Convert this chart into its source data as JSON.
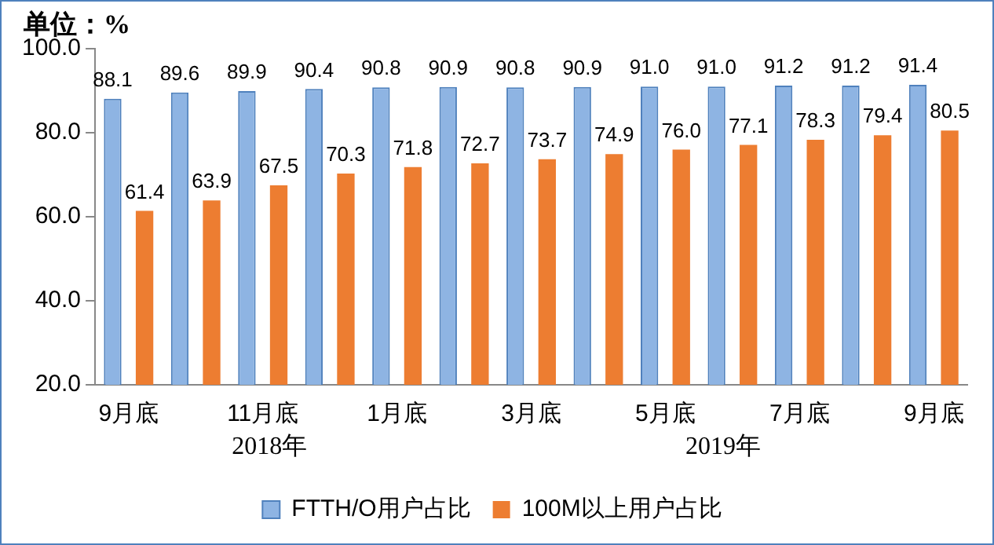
{
  "chart_data": {
    "type": "bar",
    "title": "单位：%",
    "categories": [
      "9月底",
      null,
      "11月底",
      null,
      "1月底",
      null,
      "3月底",
      null,
      "5月底",
      null,
      "7月底",
      null,
      "9月底"
    ],
    "series": [
      {
        "name": "FTTH/O用户占比",
        "color": "#8eb4e3",
        "values": [
          88.1,
          89.6,
          89.9,
          90.4,
          90.8,
          90.9,
          90.8,
          90.9,
          91.0,
          91.0,
          91.2,
          91.2,
          91.4
        ],
        "value_labels": [
          "88.1",
          "89.6",
          "89.9",
          "90.4",
          "90.8",
          "90.9",
          "90.8",
          "90.9",
          "91.0",
          "91.0",
          "91.2",
          "91.2",
          "91.4"
        ]
      },
      {
        "name": "100M以上用户占比",
        "color": "#ed7d31",
        "values": [
          61.4,
          63.9,
          67.5,
          70.3,
          71.8,
          72.7,
          73.7,
          74.9,
          76.0,
          77.1,
          78.3,
          79.4,
          80.5
        ],
        "value_labels": [
          "61.4",
          "63.9",
          "67.5",
          "70.3",
          "71.8",
          "72.7",
          "73.7",
          "74.9",
          "76.0",
          "77.1",
          "78.3",
          "79.4",
          "80.5"
        ]
      }
    ],
    "ylim": [
      20,
      100
    ],
    "yticks": [
      {
        "value": 20,
        "label": "20.0"
      },
      {
        "value": 40,
        "label": "40.0"
      },
      {
        "value": 60,
        "label": "60.0"
      },
      {
        "value": 80,
        "label": "80.0"
      },
      {
        "value": 100,
        "label": "100.0"
      }
    ],
    "annotations": [
      "2018年",
      "2019年"
    ],
    "grid": false,
    "legend": "bottom"
  }
}
